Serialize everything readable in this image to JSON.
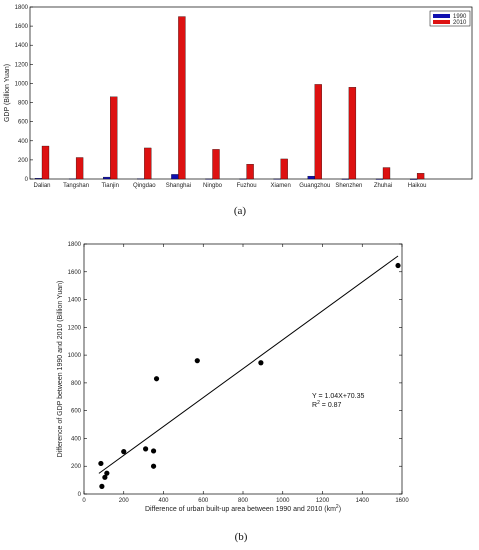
{
  "chart_data": [
    {
      "type": "bar",
      "panel_label": "(a)",
      "categories": [
        "Dalian",
        "Tangshan",
        "Tianjin",
        "Qingdao",
        "Shanghai",
        "Ningbo",
        "Fuzhou",
        "Xiamen",
        "Guangzhou",
        "Shenzhen",
        "Zhuhai",
        "Haikou"
      ],
      "series": [
        {
          "name": "1990",
          "color": "#1010b0",
          "values": [
            8,
            3,
            20,
            4,
            48,
            2,
            2,
            2,
            30,
            1,
            1,
            0.5
          ]
        },
        {
          "name": "2010",
          "color": "#dd1111",
          "values": [
            345,
            225,
            860,
            325,
            1700,
            310,
            155,
            210,
            990,
            960,
            120,
            60
          ]
        }
      ],
      "ylabel": "GDP (Billion Yuan)",
      "ylim": [
        0,
        1800
      ],
      "yticks": [
        0,
        200,
        400,
        600,
        800,
        1000,
        1200,
        1400,
        1600,
        1800
      ],
      "legend": "top-right"
    },
    {
      "type": "scatter",
      "panel_label": "(b)",
      "points": [
        {
          "x": 85,
          "y": 220
        },
        {
          "x": 90,
          "y": 55
        },
        {
          "x": 105,
          "y": 120
        },
        {
          "x": 115,
          "y": 150
        },
        {
          "x": 200,
          "y": 305
        },
        {
          "x": 310,
          "y": 325
        },
        {
          "x": 350,
          "y": 310
        },
        {
          "x": 350,
          "y": 200
        },
        {
          "x": 365,
          "y": 830
        },
        {
          "x": 570,
          "y": 960
        },
        {
          "x": 890,
          "y": 945
        },
        {
          "x": 1580,
          "y": 1645
        }
      ],
      "fit": {
        "slope": 1.04,
        "intercept": 70.35,
        "x_range": [
          75,
          1580
        ]
      },
      "annotation": {
        "equation": "Y = 1.04X+70.35",
        "r2_prefix": "R",
        "r2_suffix": " = 0.87"
      },
      "xlabel_main": "Difference of urban built-up area between 1990 and 2010 (km",
      "xlabel_sup": "2",
      "xlabel_end": ")",
      "ylabel": "Difference of GDP between 1990 and 2010 (Billion Yuan)",
      "xlim": [
        0,
        1600
      ],
      "ylim": [
        0,
        1800
      ],
      "xticks": [
        0,
        200,
        400,
        600,
        800,
        1000,
        1200,
        1400,
        1600
      ],
      "yticks": [
        0,
        200,
        400,
        600,
        800,
        1000,
        1200,
        1400,
        1600,
        1800
      ]
    }
  ]
}
